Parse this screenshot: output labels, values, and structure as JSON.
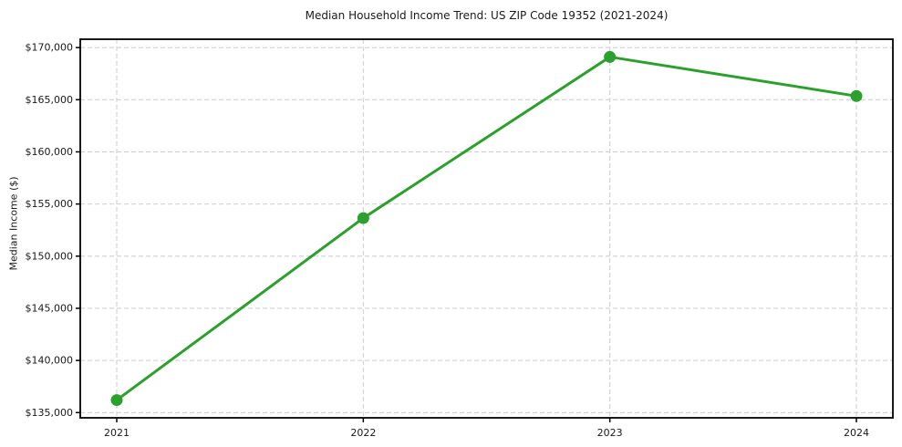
{
  "chart_data": {
    "type": "line",
    "title": "Median Household Income Trend: US ZIP Code 19352 (2021-2024)",
    "xlabel": "",
    "ylabel": "Median Income ($)",
    "categories": [
      "2021",
      "2022",
      "2023",
      "2024"
    ],
    "series": [
      {
        "name": "Median Household Income",
        "values": [
          136200,
          153650,
          169100,
          165350
        ]
      }
    ],
    "yticks": [
      135000,
      140000,
      145000,
      150000,
      155000,
      160000,
      165000,
      170000
    ],
    "ytick_labels": [
      "$135,000",
      "$140,000",
      "$145,000",
      "$150,000",
      "$155,000",
      "$160,000",
      "$165,000",
      "$170,000"
    ],
    "ylim": [
      134500,
      170800
    ],
    "grid": true,
    "grid_style": "dashed",
    "legend": "none",
    "line_color": "#2ca02c",
    "marker": "circle",
    "marker_color": "#2ca02c",
    "grid_color": "#d0d0d0",
    "spine_color": "#000000",
    "text_color": "#1a1a1a",
    "background_color": "#ffffff"
  }
}
